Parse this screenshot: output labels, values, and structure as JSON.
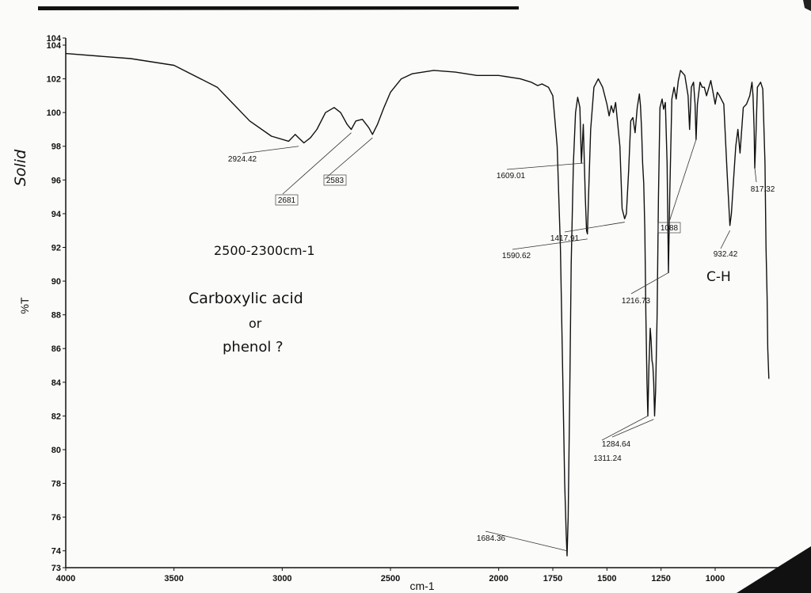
{
  "chart_data": {
    "type": "line",
    "title": "",
    "xlabel": "cm-1",
    "ylabel": "%T",
    "side_label": "Solid",
    "xlim": [
      4000,
      700
    ],
    "ylim": [
      73,
      104
    ],
    "x_ticks": [
      "4000",
      "3500",
      "3000",
      "2500",
      "2000",
      "1750",
      "1500",
      "1250",
      "1000"
    ],
    "y_ticks": [
      "73",
      "74",
      "76",
      "78",
      "80",
      "82",
      "84",
      "86",
      "88",
      "90",
      "92",
      "94",
      "96",
      "98",
      "100",
      "102",
      "104",
      "104"
    ],
    "grid": false,
    "series": [
      {
        "x": [
          4000,
          3700,
          3500,
          3300,
          3150,
          3050,
          2970,
          2940,
          2924,
          2900,
          2870,
          2840,
          2800,
          2760,
          2730,
          2700,
          2681,
          2660,
          2630,
          2600,
          2583,
          2560,
          2530,
          2500,
          2450,
          2400,
          2300,
          2200,
          2100,
          2000,
          1900,
          1850,
          1820,
          1800,
          1770,
          1750,
          1730,
          1715,
          1705,
          1695,
          1688,
          1684,
          1679,
          1672,
          1665,
          1655,
          1645,
          1635,
          1625,
          1618,
          1609,
          1600,
          1594,
          1590,
          1585,
          1575,
          1560,
          1540,
          1520,
          1500,
          1490,
          1480,
          1470,
          1460,
          1440,
          1430,
          1418,
          1410,
          1400,
          1390,
          1380,
          1370,
          1360,
          1350,
          1345,
          1340,
          1335,
          1330,
          1325,
          1320,
          1315,
          1311,
          1306,
          1300,
          1296,
          1292,
          1288,
          1284,
          1280,
          1275,
          1268,
          1262,
          1255,
          1245,
          1238,
          1230,
          1222,
          1216,
          1210,
          1200,
          1190,
          1180,
          1170,
          1160,
          1140,
          1125,
          1118,
          1110,
          1100,
          1093,
          1088,
          1082,
          1070,
          1060,
          1050,
          1040,
          1020,
          1010,
          1000,
          990,
          980,
          960,
          945,
          935,
          932,
          925,
          915,
          905,
          895,
          885,
          870,
          855,
          840,
          830,
          825,
          820,
          817,
          812,
          805,
          800,
          790,
          780,
          770,
          765,
          760,
          757,
          752
        ],
        "y": [
          103.5,
          103.2,
          102.8,
          101.5,
          99.5,
          98.6,
          98.3,
          98.7,
          98.5,
          98.2,
          98.5,
          99.0,
          100.0,
          100.3,
          100.0,
          99.3,
          99.0,
          99.5,
          99.6,
          99.1,
          98.7,
          99.3,
          100.3,
          101.2,
          102.0,
          102.3,
          102.5,
          102.4,
          102.2,
          102.2,
          102.0,
          101.8,
          101.6,
          101.7,
          101.5,
          101.0,
          98.0,
          92.0,
          85.0,
          78.0,
          75.0,
          73.7,
          76.0,
          83.0,
          91.0,
          97.0,
          100.0,
          100.9,
          100.3,
          97.0,
          99.3,
          95.0,
          93.0,
          92.8,
          95.0,
          99.0,
          101.5,
          102.0,
          101.5,
          100.5,
          99.8,
          100.4,
          100.0,
          100.6,
          98.0,
          94.3,
          93.7,
          94.0,
          96.5,
          99.5,
          99.7,
          98.8,
          100.3,
          101.1,
          100.4,
          99.0,
          97.0,
          95.8,
          93.0,
          88.0,
          84.0,
          82.0,
          85.0,
          87.2,
          86.5,
          85.3,
          85.0,
          84.0,
          82.0,
          83.5,
          88.0,
          95.0,
          100.3,
          100.8,
          100.2,
          100.6,
          97.0,
          90.5,
          95.0,
          100.8,
          101.5,
          100.8,
          101.9,
          102.5,
          102.2,
          101.0,
          99.0,
          101.5,
          101.8,
          100.5,
          98.4,
          100.5,
          101.8,
          101.5,
          101.5,
          101.0,
          101.9,
          101.2,
          100.5,
          101.2,
          101.0,
          100.5,
          96.5,
          94.0,
          93.3,
          94.0,
          96.0,
          98.0,
          99.0,
          97.6,
          100.3,
          100.5,
          101.0,
          101.8,
          101.0,
          99.0,
          96.7,
          98.5,
          101.5,
          101.6,
          101.8,
          101.4,
          97.0,
          92.0,
          89.0,
          86.0,
          84.2
        ]
      }
    ],
    "peak_labels": [
      "2924.42",
      "2681",
      "2583",
      "1609.01",
      "1590.62",
      "1417.91",
      "1684.36",
      "1311.24",
      "1284.64",
      "1216.73",
      "1088",
      "932.42",
      "817.32"
    ],
    "handwritten_notes": [
      "2500-2300cm-1",
      "Carboxylic acid",
      "or",
      "phenol ?",
      "C-H"
    ]
  }
}
